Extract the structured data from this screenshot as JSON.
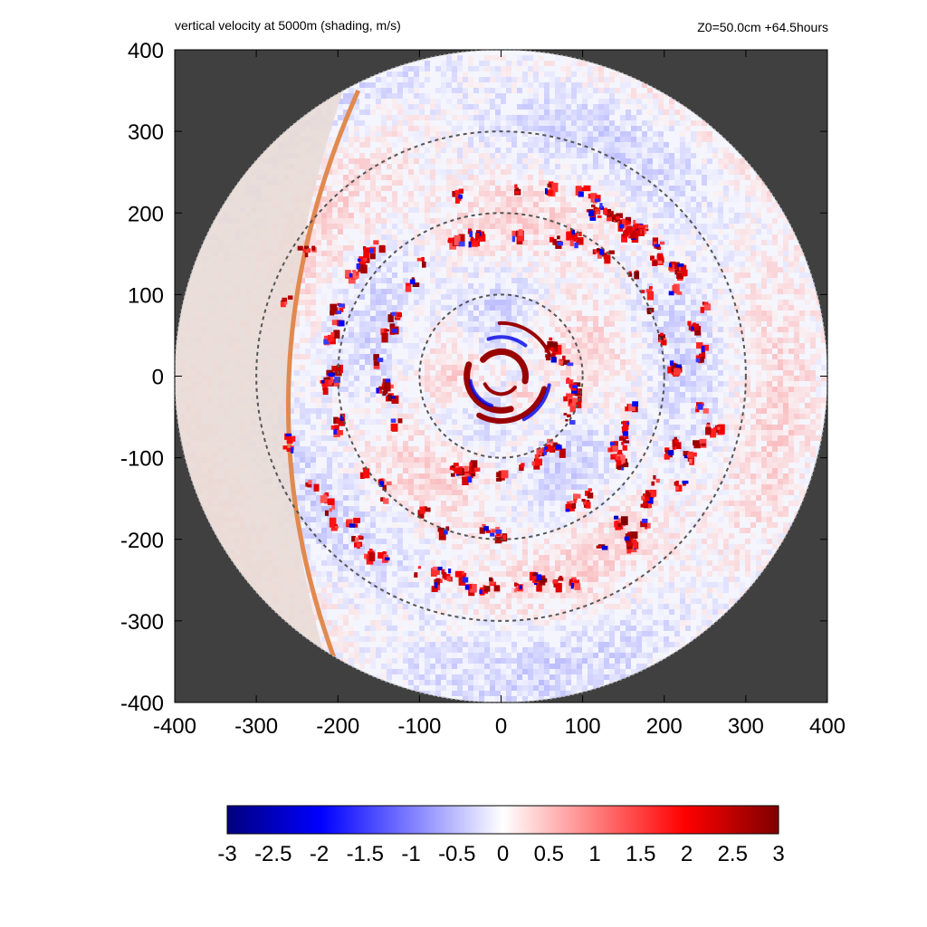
{
  "chart_data": {
    "type": "heatmap",
    "title": "vertical velocity at 5000m (shading, m/s)",
    "subtitle": "Z0=50.0cm  +64.5hours",
    "xlabel": "",
    "ylabel": "",
    "xlim": [
      -400,
      400
    ],
    "ylim": [
      -400,
      400
    ],
    "x_ticks": [
      "-400",
      "-300",
      "-200",
      "-100",
      "0",
      "100",
      "200",
      "300",
      "400"
    ],
    "y_ticks": [
      "400",
      "300",
      "200",
      "100",
      "0",
      "-100",
      "-200",
      "-300",
      "-400"
    ],
    "domain_radius": 400,
    "range_rings": [
      100,
      200,
      300
    ],
    "colorbar": {
      "min": -3,
      "max": 3,
      "ticks": [
        "-3",
        "-2.5",
        "-2",
        "-1.5",
        "-1",
        "-0.5",
        "0",
        "0.5",
        "1",
        "1.5",
        "2",
        "2.5",
        "3"
      ],
      "colors": [
        "#00007f",
        "#0000ff",
        "#ffffff",
        "#ff0000",
        "#7f0000"
      ]
    },
    "background_color": "#404040",
    "boundary_color": "#e08a50"
  }
}
